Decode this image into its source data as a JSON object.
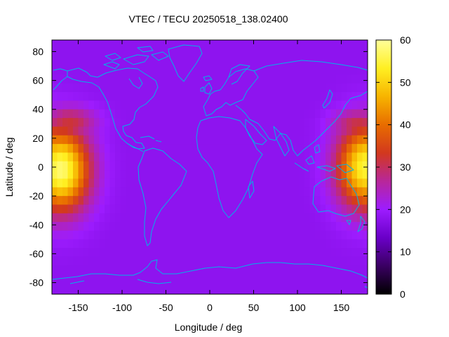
{
  "title": "VTEC / TECU 20250518_138.02400",
  "xaxis": {
    "label": "Longitude / deg",
    "ticks": [
      -150,
      -100,
      -50,
      0,
      50,
      100,
      150
    ],
    "range": [
      -180,
      180
    ]
  },
  "yaxis": {
    "label": "Latitude / deg",
    "ticks": [
      80,
      60,
      40,
      20,
      0,
      -20,
      -40,
      -60,
      -80
    ],
    "range": [
      -88,
      88
    ]
  },
  "colorbar": {
    "ticks": [
      60,
      50,
      40,
      30,
      20,
      10,
      0
    ],
    "range": [
      0,
      60
    ],
    "palette": [
      "#000000",
      "#3a0062",
      "#6a00c8",
      "#9d1cff",
      "#b8279a",
      "#d2381e",
      "#e86d00",
      "#f7b400",
      "#ffef22",
      "#ffff99"
    ]
  },
  "map": {
    "coastline_color": "#00b4e6",
    "ionosphere_peaks": [
      {
        "lon": -170,
        "lat": -2,
        "vtec": 58
      },
      {
        "lon": 178,
        "lat": 0,
        "vtec": 55
      }
    ],
    "background_vtec": 18
  }
}
